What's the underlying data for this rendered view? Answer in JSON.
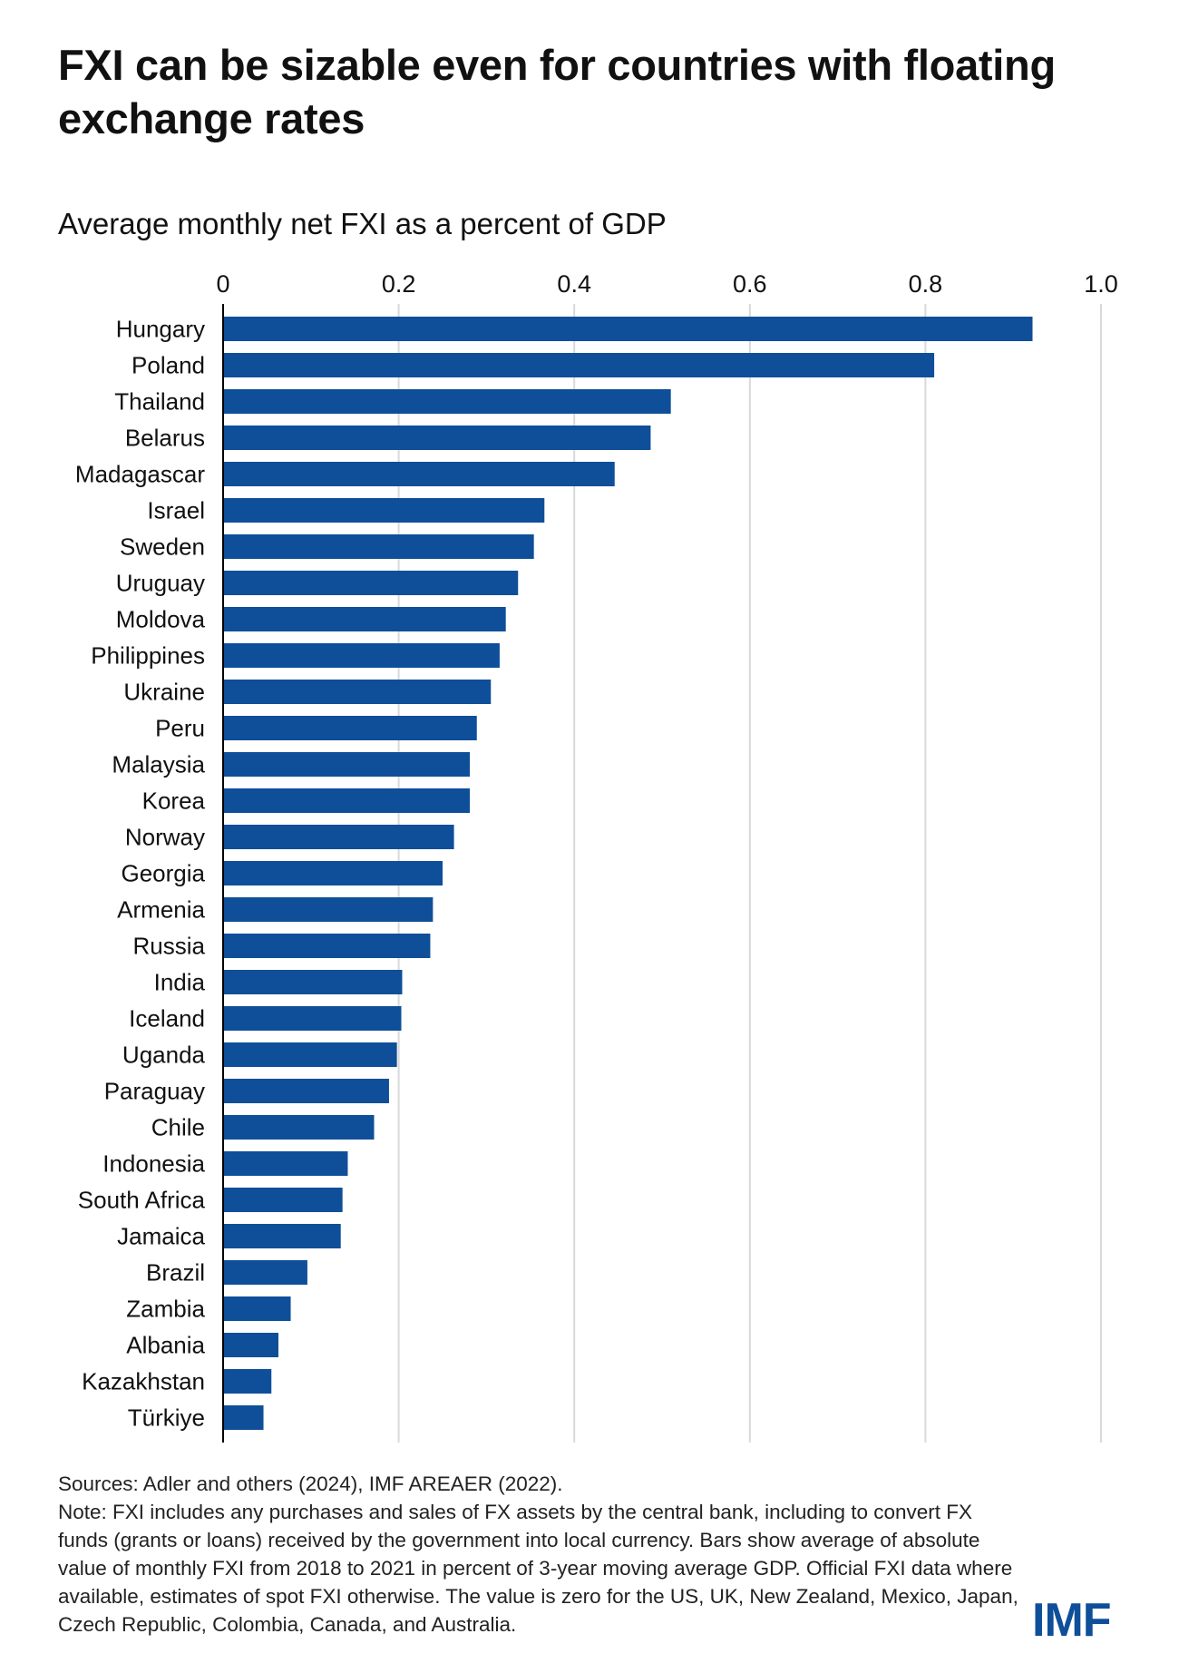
{
  "header": {
    "title": "FXI can be sizable even for countries with floating exchange rates",
    "subtitle": "Average monthly net FXI as a percent of GDP"
  },
  "chart_data": {
    "type": "bar",
    "orientation": "horizontal",
    "title": "Average monthly net FXI as a percent of GDP",
    "xlabel": "",
    "ylabel": "",
    "xlim": [
      0,
      1.0
    ],
    "ticks": [
      "0",
      "0.2",
      "0.4",
      "0.6",
      "0.8",
      "1.0"
    ],
    "tick_values": [
      0,
      0.2,
      0.4,
      0.6,
      0.8,
      1.0
    ],
    "grid": true,
    "bar_color": "#0f4f99",
    "categories": [
      "Hungary",
      "Poland",
      "Thailand",
      "Belarus",
      "Madagascar",
      "Israel",
      "Sweden",
      "Uruguay",
      "Moldova",
      "Philippines",
      "Ukraine",
      "Peru",
      "Malaysia",
      "Korea",
      "Norway",
      "Georgia",
      "Armenia",
      "Russia",
      "India",
      "Iceland",
      "Uganda",
      "Paraguay",
      "Chile",
      "Indonesia",
      "South Africa",
      "Jamaica",
      "Brazil",
      "Zambia",
      "Albania",
      "Kazakhstan",
      "Türkiye"
    ],
    "values": [
      0.922,
      0.81,
      0.51,
      0.487,
      0.446,
      0.366,
      0.354,
      0.336,
      0.322,
      0.315,
      0.305,
      0.289,
      0.281,
      0.281,
      0.263,
      0.25,
      0.239,
      0.236,
      0.204,
      0.203,
      0.198,
      0.189,
      0.172,
      0.142,
      0.136,
      0.134,
      0.096,
      0.077,
      0.063,
      0.055,
      0.046
    ]
  },
  "footer": {
    "sources": "Sources: Adler and others (2024), IMF AREAER (2022).",
    "note": "Note: FXI includes any purchases and sales of FX assets by the central bank, including to convert FX funds (grants or loans) received by the government into local currency. Bars show average of absolute value of monthly FXI from 2018 to 2021 in percent of 3-year moving average GDP. Official FXI data where available, estimates of spot FXI otherwise. The value is zero for the US, UK, New Zealand, Mexico, Japan, Czech Republic, Colombia, Canada, and Australia.",
    "logo": "IMF"
  }
}
